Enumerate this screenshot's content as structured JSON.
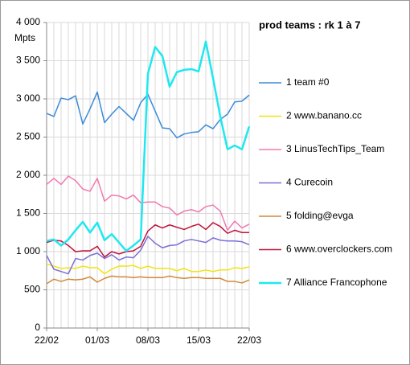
{
  "chart_data": {
    "type": "line",
    "title": "prod teams : rk 1 à 7",
    "y_label": "Mpts",
    "categories": [
      "22/02",
      null,
      null,
      null,
      null,
      null,
      null,
      "01/03",
      null,
      null,
      null,
      null,
      null,
      null,
      "08/03",
      null,
      null,
      null,
      null,
      null,
      null,
      "15/03",
      null,
      null,
      null,
      null,
      null,
      null,
      "22/03"
    ],
    "ylim": [
      0,
      4000
    ],
    "yticks": [
      0,
      500,
      {
        "value": 1000,
        "label": "1 000"
      },
      {
        "value": 1500,
        "label": "1 500"
      },
      {
        "value": 2000,
        "label": "2 000"
      },
      {
        "value": 2500,
        "label": "2 500"
      },
      {
        "value": 3000,
        "label": "3 000"
      },
      {
        "value": 3500,
        "label": "3 500"
      },
      {
        "value": 4000,
        "label": "4 000"
      }
    ],
    "grid": true,
    "legend": "right",
    "series": [
      {
        "name": "1 team #0",
        "color": "#3b8ad9",
        "values": [
          2810,
          2770,
          3010,
          2990,
          3040,
          2670,
          2870,
          3090,
          2690,
          2800,
          2900,
          2810,
          2720,
          2950,
          3060,
          2840,
          2620,
          2610,
          2490,
          2540,
          2560,
          2570,
          2660,
          2610,
          2730,
          2800,
          2960,
          2970,
          3050
        ]
      },
      {
        "name": "2 www.banano.cc",
        "color": "#f2e30f",
        "values": [
          840,
          810,
          780,
          790,
          780,
          810,
          790,
          790,
          710,
          770,
          810,
          810,
          820,
          780,
          810,
          780,
          780,
          780,
          750,
          780,
          740,
          740,
          760,
          740,
          760,
          760,
          790,
          780,
          800
        ]
      },
      {
        "name": "3 LinusTechTips_Team",
        "color": "#f07ab0",
        "values": [
          1880,
          1960,
          1880,
          1990,
          1930,
          1820,
          1790,
          1960,
          1660,
          1740,
          1730,
          1690,
          1740,
          1640,
          1650,
          1650,
          1590,
          1570,
          1480,
          1530,
          1550,
          1520,
          1590,
          1610,
          1530,
          1280,
          1400,
          1310,
          1360
        ]
      },
      {
        "name": "4 Curecoin",
        "color": "#7a6fd6",
        "values": [
          950,
          770,
          740,
          710,
          910,
          890,
          950,
          980,
          910,
          960,
          890,
          930,
          920,
          1020,
          1200,
          1110,
          1050,
          1080,
          1090,
          1140,
          1160,
          1140,
          1120,
          1180,
          1150,
          1140,
          1140,
          1130,
          1090
        ]
      },
      {
        "name": "5 folding@evga",
        "color": "#d2893a",
        "values": [
          580,
          640,
          610,
          640,
          630,
          640,
          670,
          600,
          650,
          680,
          670,
          670,
          660,
          670,
          660,
          660,
          660,
          680,
          660,
          650,
          660,
          660,
          650,
          650,
          650,
          610,
          610,
          590,
          630
        ]
      },
      {
        "name": "6 www.overclockers.com",
        "color": "#c0143c",
        "values": [
          1120,
          1150,
          1140,
          1080,
          1000,
          1010,
          1010,
          1070,
          930,
          1000,
          970,
          1000,
          1010,
          1070,
          1270,
          1350,
          1310,
          1350,
          1320,
          1290,
          1330,
          1360,
          1290,
          1380,
          1330,
          1240,
          1280,
          1250,
          1250
        ]
      },
      {
        "name": "7 Alliance Francophone",
        "color": "#1ee8f0",
        "values": [
          1140,
          1160,
          1080,
          1160,
          1280,
          1390,
          1250,
          1380,
          1150,
          1230,
          1120,
          1010,
          1080,
          1160,
          3330,
          3680,
          3560,
          3160,
          3350,
          3380,
          3390,
          3360,
          3750,
          3270,
          2770,
          2340,
          2390,
          2340,
          2640
        ]
      }
    ]
  }
}
